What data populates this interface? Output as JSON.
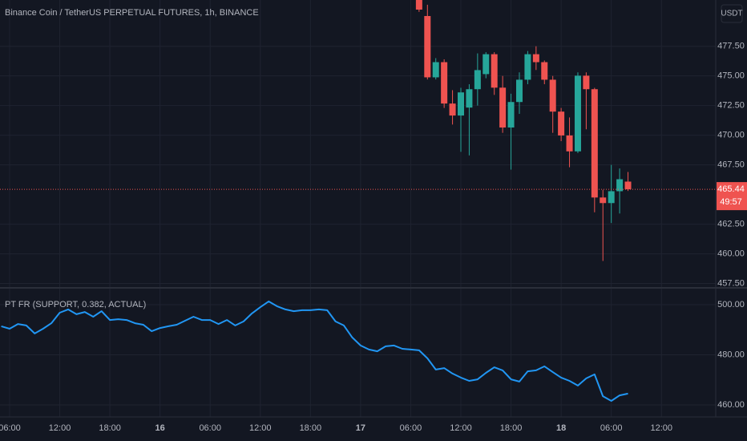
{
  "chart_data": [
    {
      "type": "candlestick",
      "title": "Binance Coin / TetherUS PERPETUAL FUTURES, 1h, BINANCE",
      "currency": "USDT",
      "up_color": "#26a69a",
      "down_color": "#ef5350",
      "x": [
        49,
        50,
        51,
        52,
        53,
        54,
        55,
        56,
        57,
        58,
        59,
        60,
        61,
        62,
        63,
        64,
        65,
        66,
        67,
        68,
        69,
        70,
        71,
        72,
        73,
        74
      ],
      "open": [
        481.8,
        480.05,
        474.88,
        476.16,
        472.67,
        471.66,
        472.33,
        473.88,
        475.15,
        476.83,
        474.01,
        470.65,
        472.8,
        474.68,
        476.83,
        476.16,
        474.68,
        471.99,
        469.98,
        468.64,
        475.02,
        473.88,
        464.75,
        464.28,
        465.28,
        466.09
      ],
      "high": [
        482.2,
        481.0,
        476.5,
        476.4,
        473.8,
        474.0,
        474.3,
        476.9,
        477.0,
        477.0,
        475.0,
        473.5,
        475.3,
        477.1,
        477.5,
        476.3,
        475.0,
        472.3,
        471.5,
        475.3,
        475.3,
        474.0,
        465.4,
        467.5,
        467.2,
        466.9
      ],
      "low": [
        480.4,
        474.7,
        474.7,
        472.3,
        470.9,
        468.6,
        468.3,
        472.5,
        474.8,
        473.4,
        470.2,
        467.1,
        471.8,
        474.3,
        475.5,
        474.3,
        470.2,
        469.5,
        467.3,
        468.5,
        470.5,
        463.5,
        459.4,
        462.6,
        463.4,
        465.3
      ],
      "close": [
        480.59,
        474.88,
        476.16,
        472.67,
        471.66,
        473.61,
        473.88,
        475.49,
        476.83,
        474.01,
        470.65,
        472.8,
        474.68,
        476.83,
        476.16,
        474.68,
        471.99,
        469.98,
        468.64,
        475.02,
        473.88,
        464.75,
        464.28,
        465.28,
        466.29,
        465.44
      ],
      "last_price": 465.44,
      "countdown": "49:57",
      "xlim": [
        -1.15,
        84.5
      ],
      "ylim": [
        457.2,
        481.4
      ],
      "yticks": [
        {
          "value": 457.5,
          "label": "457.50"
        },
        {
          "value": 460,
          "label": "460.00"
        },
        {
          "value": 462.5,
          "label": "462.50"
        },
        {
          "value": 467.5,
          "label": "467.50"
        },
        {
          "value": 470,
          "label": "470.00"
        },
        {
          "value": 472.5,
          "label": "472.50"
        },
        {
          "value": 475,
          "label": "475.00"
        },
        {
          "value": 477.5,
          "label": "477.50"
        }
      ],
      "grid": true
    },
    {
      "type": "line",
      "title": "PT FR (SUPPORT, 0.382, ACTUAL)",
      "color": "#2196f3",
      "x": [
        -1,
        0,
        1,
        2,
        3,
        4,
        5,
        6,
        7,
        8,
        9,
        10,
        11,
        12,
        13,
        14,
        15,
        16,
        17,
        18,
        19,
        20,
        21,
        22,
        23,
        24,
        25,
        26,
        27,
        28,
        29,
        30,
        31,
        32,
        33,
        34,
        35,
        36,
        37,
        38,
        39,
        40,
        41,
        42,
        43,
        44,
        45,
        46,
        47,
        48,
        49,
        50,
        51,
        52,
        53,
        54,
        55,
        56,
        57,
        58,
        59,
        60,
        61,
        62,
        63,
        64,
        65,
        66,
        67,
        68,
        69,
        70,
        71,
        72,
        73,
        74
      ],
      "values": [
        491.4,
        490.4,
        492.3,
        491.7,
        488.5,
        490.4,
        492.6,
        496.8,
        498.1,
        496.2,
        497.1,
        495.2,
        497.4,
        493.9,
        494.2,
        493.9,
        492.6,
        492.0,
        489.4,
        490.7,
        491.4,
        492.0,
        493.6,
        495.2,
        493.9,
        493.9,
        492.3,
        493.9,
        491.7,
        493.3,
        496.5,
        499.0,
        501.3,
        499.4,
        498.1,
        497.4,
        497.8,
        497.8,
        498.1,
        497.8,
        493.3,
        491.7,
        486.9,
        483.7,
        482.1,
        481.4,
        483.4,
        483.7,
        482.4,
        482.1,
        481.8,
        478.6,
        474.1,
        474.7,
        472.5,
        470.9,
        469.6,
        470.2,
        472.8,
        475.0,
        473.8,
        470.2,
        469.3,
        473.4,
        473.8,
        475.4,
        473.1,
        470.9,
        469.6,
        467.7,
        470.6,
        472.2,
        463.5,
        461.6,
        463.8,
        464.5
      ],
      "xlim": [
        -1.15,
        84.5
      ],
      "ylim": [
        455.2,
        506.4
      ],
      "yticks": [
        {
          "value": 460,
          "label": "460.00"
        },
        {
          "value": 480,
          "label": "480.00"
        },
        {
          "value": 500,
          "label": "500.00"
        }
      ],
      "xticks": [
        {
          "value": 0,
          "label": "06:00"
        },
        {
          "value": 6,
          "label": "12:00"
        },
        {
          "value": 12,
          "label": "18:00"
        },
        {
          "value": 18,
          "label": "16"
        },
        {
          "value": 24,
          "label": "06:00"
        },
        {
          "value": 30,
          "label": "12:00"
        },
        {
          "value": 36,
          "label": "18:00"
        },
        {
          "value": 42,
          "label": "17"
        },
        {
          "value": 48,
          "label": "06:00"
        },
        {
          "value": 54,
          "label": "12:00"
        },
        {
          "value": 60,
          "label": "18:00"
        },
        {
          "value": 66,
          "label": "18"
        },
        {
          "value": 72,
          "label": "06:00"
        },
        {
          "value": 78,
          "label": "12:00"
        }
      ],
      "grid": true
    }
  ]
}
